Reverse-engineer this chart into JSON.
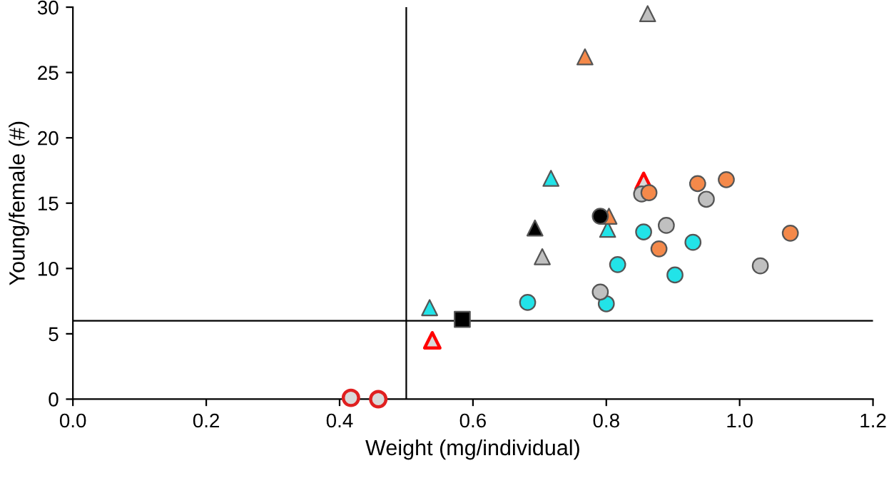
{
  "chart_data": {
    "type": "scatter",
    "xlabel": "Weight (mg/individual)",
    "ylabel": "Young/female (#)",
    "xlim": [
      0,
      1.2
    ],
    "ylim": [
      0,
      30
    ],
    "xticks": [
      {
        "value": 0,
        "label": "0.0"
      },
      {
        "value": 0.2,
        "label": "0.2"
      },
      {
        "value": 0.4,
        "label": "0.4"
      },
      {
        "value": 0.6,
        "label": "0.6"
      },
      {
        "value": 0.8,
        "label": "0.8"
      },
      {
        "value": 1.0,
        "label": "1.0"
      },
      {
        "value": 1.2,
        "label": "1.2"
      }
    ],
    "yticks": [
      0,
      5,
      10,
      15,
      20,
      25,
      30
    ],
    "grid": false,
    "legend": false,
    "ref_lines": [
      {
        "axis": "x",
        "value": 0.5,
        "color": "#000000"
      },
      {
        "axis": "y",
        "value": 6,
        "color": "#000000"
      }
    ],
    "series": [
      {
        "color": "#f4894a",
        "marker": "circle",
        "x": [
          0.864,
          0.937,
          0.98,
          0.879,
          1.076
        ],
        "values": [
          15.8,
          16.5,
          16.8,
          11.5,
          12.7
        ]
      },
      {
        "color": "#c0c0c0",
        "marker": "circle",
        "x": [
          0.853,
          0.95,
          0.89,
          1.031,
          0.791
        ],
        "values": [
          15.7,
          15.3,
          13.3,
          10.2,
          8.2
        ]
      },
      {
        "color": "#22e3e8",
        "marker": "circle",
        "x": [
          0.856,
          0.93,
          0.817,
          0.903,
          0.8,
          0.682
        ],
        "values": [
          12.8,
          12.0,
          10.3,
          9.5,
          7.3,
          7.4
        ]
      },
      {
        "color": "#000000",
        "marker": "circle",
        "x": [
          0.791
        ],
        "values": [
          14.0
        ]
      },
      {
        "color": "#f4894a",
        "marker": "triangle",
        "x": [
          0.768,
          0.804
        ],
        "values": [
          26.2,
          14.0
        ]
      },
      {
        "color": "#c0c0c0",
        "marker": "triangle",
        "x": [
          0.862,
          0.704
        ],
        "values": [
          29.5,
          10.9
        ]
      },
      {
        "color": "#22e3e8",
        "marker": "triangle",
        "x": [
          0.802,
          0.717,
          0.535
        ],
        "values": [
          13.0,
          16.9,
          7.0
        ]
      },
      {
        "color": "#000000",
        "marker": "triangle",
        "x": [
          0.693
        ],
        "values": [
          13.1
        ]
      },
      {
        "color": "#000000",
        "marker": "square",
        "x": [
          0.584
        ],
        "values": [
          6.1
        ]
      },
      {
        "color": "#ff0000",
        "marker": "triangle",
        "x": [
          0.539,
          0.856
        ],
        "values": [
          4.5,
          16.7
        ]
      },
      {
        "color": "#e02020",
        "marker": "circle",
        "x": [
          0.417,
          0.458
        ],
        "values": [
          0.1,
          0.0
        ]
      }
    ]
  }
}
